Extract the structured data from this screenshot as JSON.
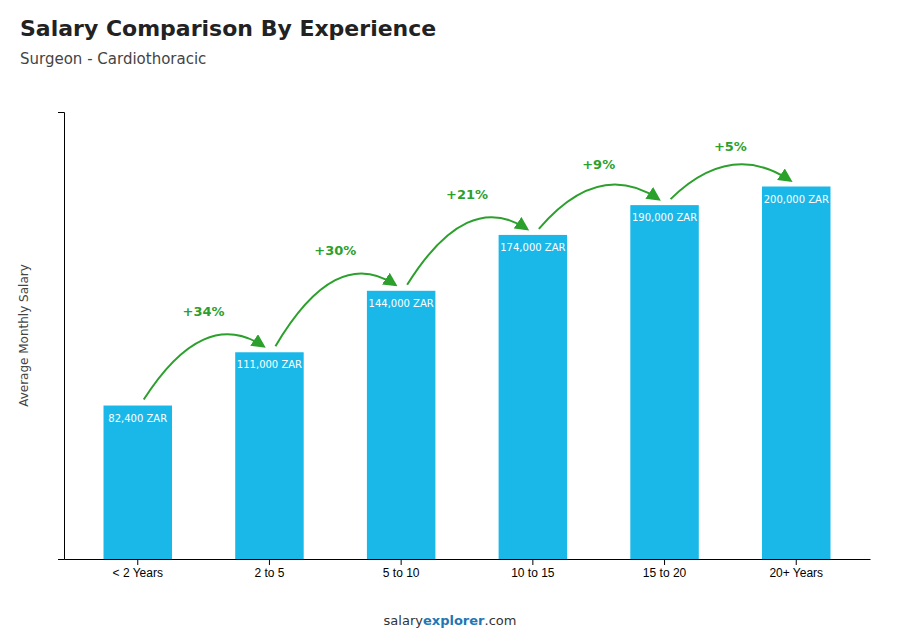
{
  "chart_data": {
    "type": "bar",
    "title": "Salary Comparison By Experience",
    "subtitle": "Surgeon - Cardiothoracic",
    "ylabel": "Average Monthly Salary",
    "categories": [
      "< 2 Years",
      "2 to 5",
      "5 to 10",
      "10 to 15",
      "15 to 20",
      "20+ Years"
    ],
    "values": [
      82400,
      111000,
      144000,
      174000,
      190000,
      200000
    ],
    "value_labels": [
      "82,400 ZAR",
      "111,000 ZAR",
      "144,000 ZAR",
      "174,000 ZAR",
      "190,000 ZAR",
      "200,000 ZAR"
    ],
    "data_labels": true,
    "color": "#1ab8e8",
    "ylim": [
      0,
      240000
    ],
    "yticks": [],
    "tick_labels": "x",
    "grid": false,
    "annotations": [
      "+34%",
      "+30%",
      "+21%",
      "+9%",
      "+5%"
    ],
    "footer": [
      "salary",
      "explorer",
      ".com"
    ]
  }
}
